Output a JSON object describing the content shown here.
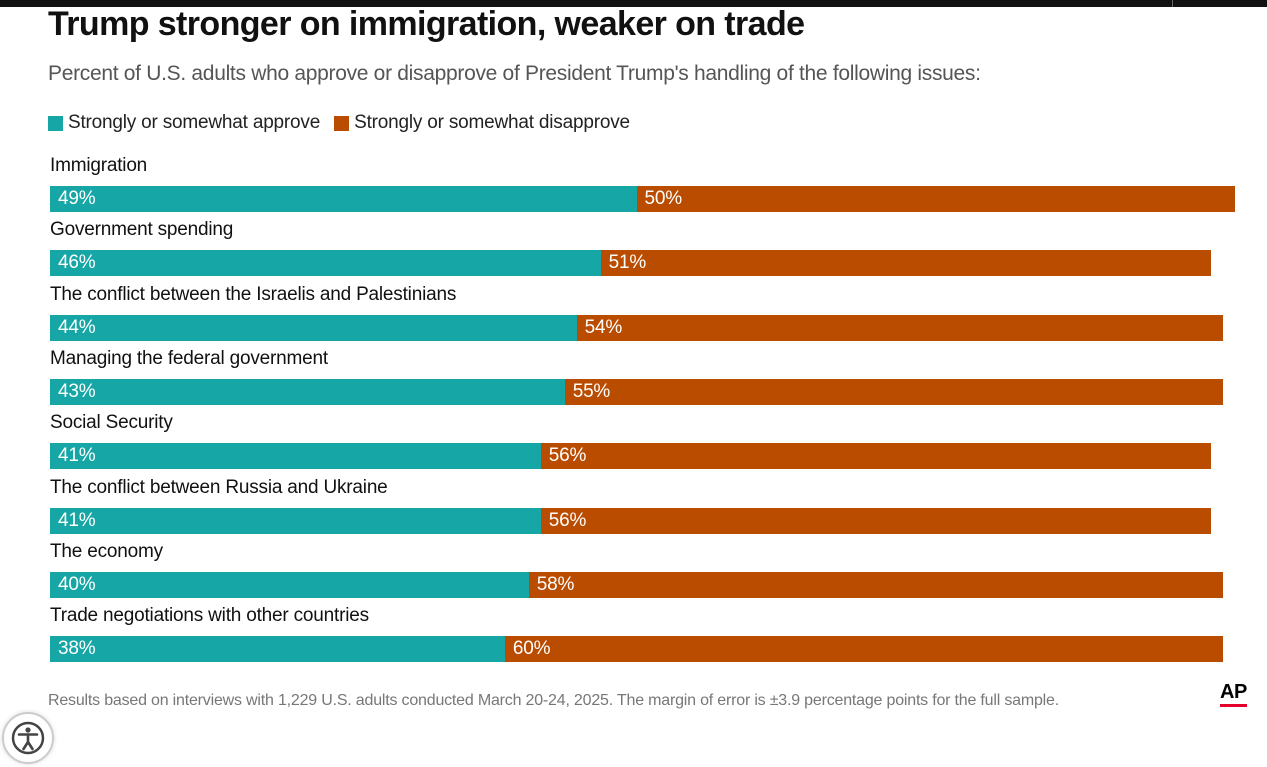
{
  "colors": {
    "approve": "#16a6a6",
    "disapprove": "#ba4c00"
  },
  "header": {
    "title": "Trump stronger on immigration, weaker on trade",
    "subtitle": "Percent of U.S. adults who approve or disapprove of President Trump's handling of the following issues:"
  },
  "legend": {
    "approve": "Strongly or somewhat approve",
    "disapprove": "Strongly or somewhat disapprove"
  },
  "chart_data": {
    "type": "bar",
    "orientation": "horizontal",
    "stacked": true,
    "title": "Trump stronger on immigration, weaker on trade",
    "subtitle": "Percent of U.S. adults who approve or disapprove of President Trump's handling of the following issues:",
    "categories": [
      "Immigration",
      "Government spending",
      "The conflict between the Israelis and Palestinians",
      "Managing the federal government",
      "Social Security",
      "The conflict between Russia and Ukraine",
      "The economy",
      "Trade negotiations with other countries"
    ],
    "series": [
      {
        "name": "Strongly or somewhat approve",
        "color": "#16a6a6",
        "values": [
          49,
          46,
          44,
          43,
          41,
          41,
          40,
          38
        ]
      },
      {
        "name": "Strongly or somewhat disapprove",
        "color": "#ba4c00",
        "values": [
          50,
          51,
          54,
          55,
          56,
          56,
          58,
          60
        ]
      }
    ],
    "value_suffix": "%",
    "xlim": [
      0,
      100
    ],
    "legend_position": "top-left",
    "grid": false
  },
  "footer": {
    "note": "Results based on interviews with 1,229 U.S. adults conducted March 20-24, 2025. The margin of error is ±3.9 percentage points for the full sample.",
    "logo_text": "AP"
  },
  "accessibility": {
    "icon": "accessibility-icon"
  }
}
